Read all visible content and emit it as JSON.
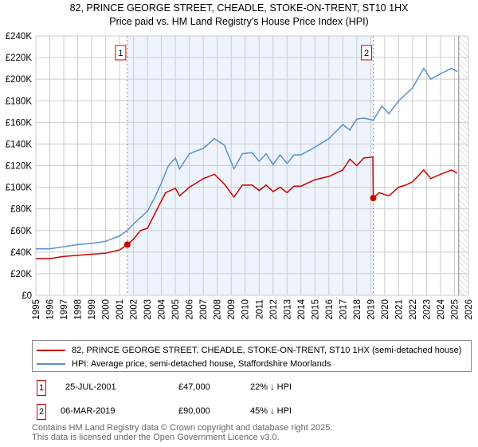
{
  "chart_data": {
    "type": "line",
    "title": "82, PRINCE GEORGE STREET, CHEADLE, STOKE-ON-TRENT, ST10 1HX",
    "subtitle": "Price paid vs. HM Land Registry's House Price Index (HPI)",
    "xlim": [
      1995,
      2026
    ],
    "ylim": [
      0,
      240000
    ],
    "x_ticks": [
      "1995",
      "1996",
      "1997",
      "1998",
      "1999",
      "2000",
      "2001",
      "2002",
      "2003",
      "2004",
      "2005",
      "2006",
      "2007",
      "2008",
      "2009",
      "2010",
      "2011",
      "2012",
      "2013",
      "2014",
      "2015",
      "2016",
      "2017",
      "2018",
      "2019",
      "2020",
      "2021",
      "2022",
      "2023",
      "2024",
      "2025",
      "2026"
    ],
    "y_ticks": [
      {
        "v": 0,
        "label": "£0"
      },
      {
        "v": 20000,
        "label": "£20K"
      },
      {
        "v": 40000,
        "label": "£40K"
      },
      {
        "v": 60000,
        "label": "£60K"
      },
      {
        "v": 80000,
        "label": "£80K"
      },
      {
        "v": 100000,
        "label": "£100K"
      },
      {
        "v": 120000,
        "label": "£120K"
      },
      {
        "v": 140000,
        "label": "£140K"
      },
      {
        "v": 160000,
        "label": "£160K"
      },
      {
        "v": 180000,
        "label": "£180K"
      },
      {
        "v": 200000,
        "label": "£200K"
      },
      {
        "v": 220000,
        "label": "£220K"
      },
      {
        "v": 240000,
        "label": "£240K"
      }
    ],
    "grid": true,
    "shaded_range": [
      2001.56,
      2019.18
    ],
    "forecast_start": 2025.3,
    "series": [
      {
        "name": "82, PRINCE GEORGE STREET, CHEADLE, STOKE-ON-TRENT, ST10 1HX (semi-detached house)",
        "color": "#cc0000",
        "x": [
          1995,
          1996,
          1997,
          1998,
          1999,
          2000,
          2001,
          2001.56,
          2002,
          2002.5,
          2003,
          2003.7,
          2004.3,
          2005,
          2005.3,
          2006,
          2007,
          2007.8,
          2008.5,
          2009.2,
          2009.8,
          2010.5,
          2011,
          2011.5,
          2012,
          2012.5,
          2013,
          2013.5,
          2014,
          2015,
          2016,
          2017,
          2017.5,
          2018,
          2018.5,
          2019.15,
          2019.18,
          2019.6,
          2020.3,
          2021,
          2021.5,
          2022,
          2022.8,
          2023.3,
          2024,
          2024.8,
          2025.2
        ],
        "y": [
          34000,
          34000,
          36000,
          37000,
          38000,
          39000,
          42000,
          47000,
          52000,
          60000,
          62000,
          80000,
          95000,
          99000,
          92000,
          100000,
          108000,
          112000,
          103000,
          91000,
          102000,
          102000,
          97000,
          102000,
          96000,
          100000,
          95000,
          101000,
          101000,
          107000,
          110000,
          116000,
          126000,
          120000,
          127000,
          128000,
          90000,
          95000,
          92000,
          100000,
          102000,
          105000,
          116000,
          108000,
          112000,
          116000,
          113000
        ]
      },
      {
        "name": "HPI: Average price, semi-detached house, Staffordshire Moorlands",
        "color": "#5b8fd0",
        "x": [
          1995,
          1996,
          1997,
          1998,
          1999,
          2000,
          2001,
          2001.56,
          2002,
          2003,
          2003.5,
          2004,
          2004.5,
          2005,
          2005.3,
          2006,
          2007,
          2007.8,
          2008.5,
          2009.2,
          2009.8,
          2010.5,
          2011,
          2011.5,
          2012,
          2012.5,
          2013,
          2013.5,
          2014,
          2015,
          2016,
          2017,
          2017.5,
          2018,
          2018.5,
          2019.18,
          2019.8,
          2020.3,
          2021,
          2021.5,
          2022,
          2022.8,
          2023.3,
          2024,
          2024.8,
          2025.2
        ],
        "y": [
          43000,
          43000,
          45000,
          47000,
          48000,
          50000,
          55000,
          60000,
          66000,
          78000,
          90000,
          104000,
          120000,
          127000,
          117000,
          131000,
          136000,
          145000,
          139000,
          117000,
          131000,
          132000,
          124000,
          131000,
          121000,
          130000,
          122000,
          130000,
          130000,
          137000,
          145000,
          158000,
          153000,
          163000,
          164000,
          162000,
          175000,
          168000,
          180000,
          186000,
          192000,
          210000,
          200000,
          205000,
          210000,
          207000
        ]
      }
    ],
    "markers": [
      {
        "id": "1",
        "x": 2001.56,
        "y": 47000
      },
      {
        "id": "2",
        "x": 2019.18,
        "y": 90000
      }
    ]
  },
  "legend": {
    "property": "82, PRINCE GEORGE STREET, CHEADLE, STOKE-ON-TRENT, ST10 1HX (semi-detached house)",
    "hpi": "HPI: Average price, semi-detached house, Staffordshire Moorlands"
  },
  "transactions": [
    {
      "id": "1",
      "date": "25-JUL-2001",
      "price": "£47,000",
      "delta": "22% ↓ HPI"
    },
    {
      "id": "2",
      "date": "06-MAR-2019",
      "price": "£90,000",
      "delta": "45% ↓ HPI"
    }
  ],
  "footer": {
    "line1": "Contains HM Land Registry data © Crown copyright and database right 2025.",
    "line2": "This data is licensed under the Open Government Licence v3.0."
  }
}
